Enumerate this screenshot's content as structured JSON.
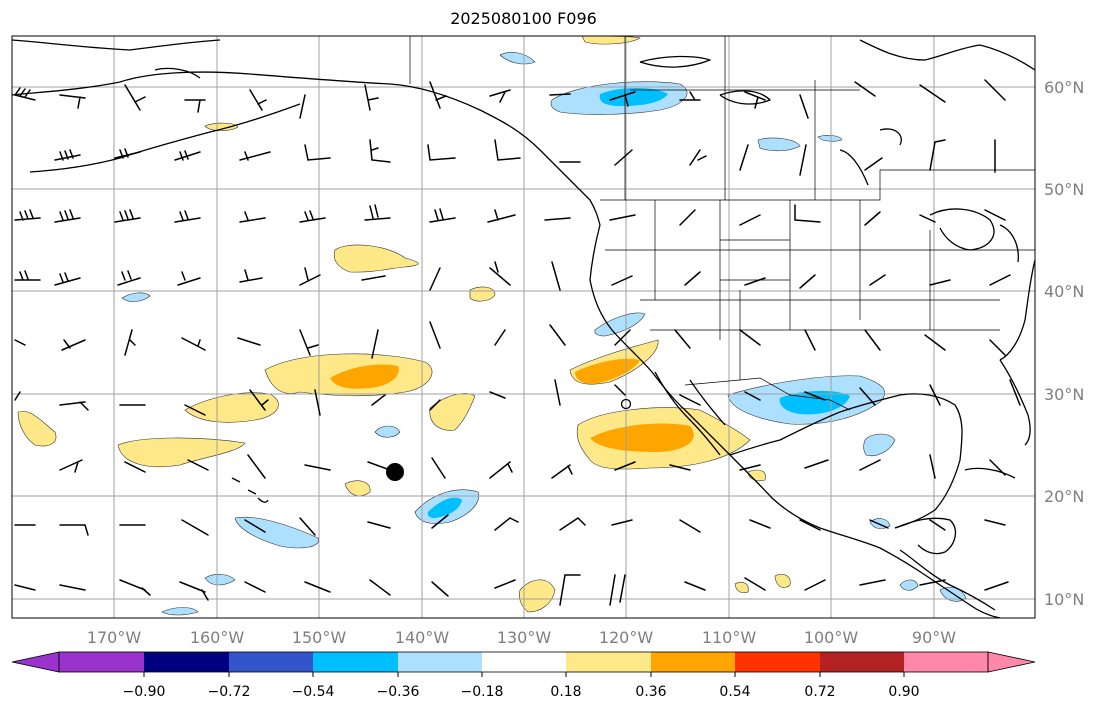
{
  "title": "2025080100 F096",
  "map": {
    "lat_labels": [
      "60°N",
      "50°N",
      "40°N",
      "30°N",
      "20°N",
      "10°N"
    ],
    "lon_labels": [
      "170°W",
      "160°W",
      "150°W",
      "140°W",
      "130°W",
      "120°W",
      "110°W",
      "100°W",
      "90°W"
    ],
    "colors": {
      "land": "#000000",
      "grid": "#a0a0a0",
      "barb": "#000000"
    }
  },
  "colorbar": {
    "tick_labels": [
      "−0.90",
      "−0.72",
      "−0.54",
      "−0.36",
      "−0.18",
      "0.18",
      "0.36",
      "0.54",
      "0.72",
      "0.90"
    ],
    "colors": [
      "#9933cc",
      "#000080",
      "#3355cc",
      "#00bfff",
      "#addfff",
      "#ffffff",
      "#ffe888",
      "#ffa500",
      "#ff3300",
      "#b22222",
      "#ff88aa"
    ]
  }
}
